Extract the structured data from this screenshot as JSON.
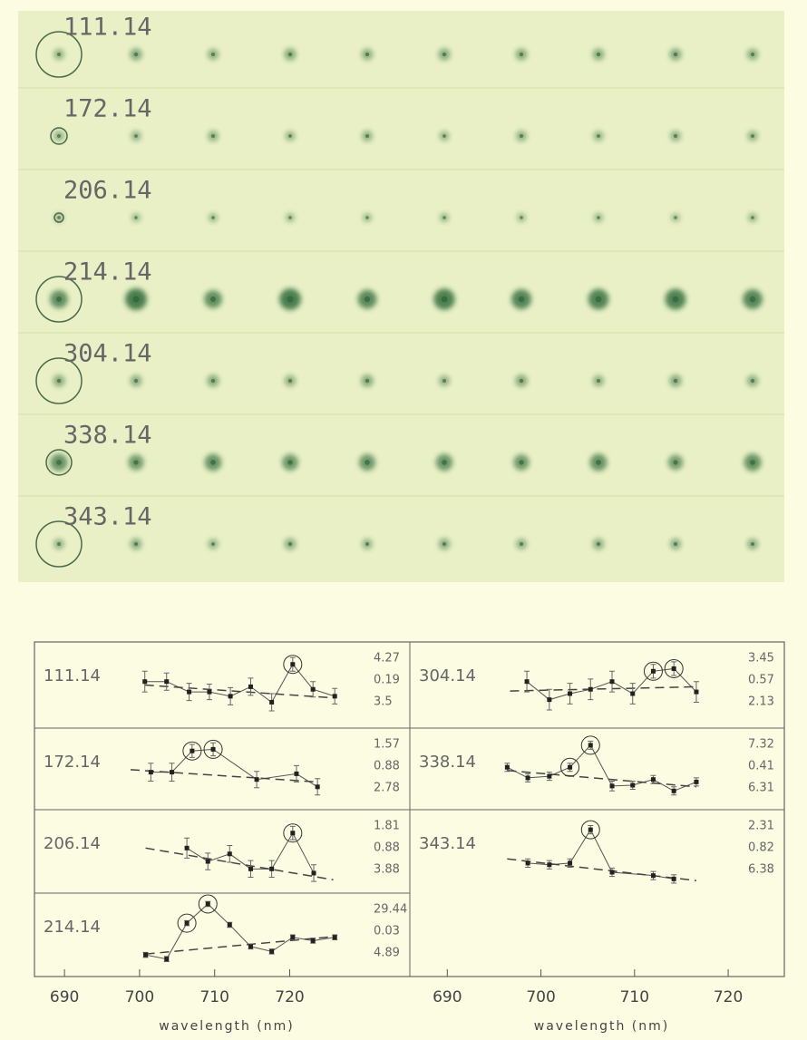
{
  "image_strips": {
    "labels": [
      "111.14",
      "172.14",
      "206.14",
      "214.14",
      "304.14",
      "338.14",
      "343.14"
    ]
  },
  "chart_data": [
    {
      "type": "line",
      "title": "111.14",
      "annotations": [
        "4.27",
        "0.19",
        "3.5"
      ],
      "x": [
        700.7,
        703.6,
        706.6,
        709.3,
        712.1,
        714.8,
        717.6,
        720.4,
        723.1,
        726.0
      ],
      "values": [
        5.4,
        5.4,
        4.2,
        4.2,
        3.7,
        4.8,
        3.0,
        7.4,
        4.5,
        3.7
      ],
      "errors": [
        1.2,
        1.0,
        1.0,
        0.9,
        1.0,
        1.0,
        1.0,
        0.8,
        0.9,
        0.9
      ],
      "highlight": [
        7
      ],
      "trend": {
        "x": [
          700.7,
          726.0
        ],
        "values": [
          5.0,
          3.5
        ]
      },
      "xlim": [
        686,
        736
      ],
      "ylim": [
        0,
        10
      ]
    },
    {
      "type": "line",
      "title": "172.14",
      "annotations": [
        "1.57",
        "0.88",
        "2.78"
      ],
      "x": [
        701.5,
        704.3,
        707.0,
        709.8,
        715.6,
        720.9,
        723.7
      ],
      "values": [
        4.6,
        4.6,
        7.2,
        7.4,
        3.7,
        4.4,
        2.8
      ],
      "errors": [
        1.1,
        1.1,
        0.8,
        0.8,
        1.0,
        1.0,
        1.0
      ],
      "highlight": [
        2,
        3
      ],
      "trend": {
        "x": [
          698.8,
          723.7
        ],
        "values": [
          4.9,
          3.4
        ]
      },
      "xlim": [
        686,
        736
      ],
      "ylim": [
        0,
        10
      ]
    },
    {
      "type": "line",
      "title": "206.14",
      "annotations": [
        "1.81",
        "0.88",
        "3.88"
      ],
      "x": [
        706.3,
        709.1,
        712.0,
        714.8,
        717.6,
        720.4,
        723.2
      ],
      "values": [
        5.4,
        3.8,
        4.7,
        2.9,
        2.9,
        7.2,
        2.4
      ],
      "errors": [
        1.2,
        1.0,
        1.0,
        1.0,
        1.0,
        0.8,
        1.0
      ],
      "highlight": [
        5
      ],
      "trend": {
        "x": [
          700.8,
          725.8
        ],
        "values": [
          5.4,
          1.6
        ]
      },
      "xlim": [
        686,
        736
      ],
      "ylim": [
        0,
        10
      ]
    },
    {
      "type": "line",
      "title": "214.14",
      "annotations": [
        "29.44",
        "0.03",
        "4.89"
      ],
      "x": [
        700.8,
        703.6,
        706.3,
        709.1,
        712.0,
        714.8,
        717.6,
        720.4,
        723.1,
        726.0
      ],
      "values": [
        2.6,
        2.1,
        6.4,
        8.7,
        6.2,
        3.6,
        3.0,
        4.7,
        4.3,
        4.7
      ],
      "errors": [
        0.3,
        0.3,
        0.3,
        0.3,
        0.3,
        0.3,
        0.3,
        0.3,
        0.3,
        0.3
      ],
      "highlight": [
        2,
        3
      ],
      "trend": {
        "x": [
          700.8,
          726.0
        ],
        "values": [
          2.7,
          4.8
        ]
      },
      "xlim": [
        686,
        736
      ],
      "ylim": [
        0,
        10
      ],
      "xticks": [
        690,
        700,
        710,
        720
      ],
      "xlabel": "wavelength (nm)"
    },
    {
      "type": "line",
      "title": "304.14",
      "annotations": [
        "3.45",
        "0.57",
        "2.13"
      ],
      "x": [
        698.5,
        700.9,
        703.1,
        705.3,
        707.6,
        709.8,
        712.0,
        714.2,
        716.6
      ],
      "values": [
        5.4,
        3.3,
        4.0,
        4.5,
        5.4,
        4.0,
        6.6,
        6.9,
        4.2
      ],
      "errors": [
        1.2,
        1.2,
        1.2,
        1.2,
        1.2,
        1.2,
        0.8,
        0.8,
        1.2
      ],
      "highlight": [
        6,
        7
      ],
      "trend": {
        "x": [
          696.7,
          716.6
        ],
        "values": [
          4.3,
          4.8
        ]
      },
      "xlim": [
        686,
        726
      ],
      "ylim": [
        0,
        10
      ]
    },
    {
      "type": "line",
      "title": "338.14",
      "annotations": [
        "7.32",
        "0.41",
        "6.31"
      ],
      "x": [
        696.4,
        698.6,
        700.9,
        703.1,
        705.3,
        707.6,
        709.8,
        712.0,
        714.2,
        716.6
      ],
      "values": [
        5.2,
        3.9,
        4.1,
        5.2,
        7.9,
        2.9,
        3.0,
        3.7,
        2.3,
        3.4
      ],
      "errors": [
        0.5,
        0.5,
        0.5,
        0.5,
        0.5,
        0.6,
        0.5,
        0.5,
        0.5,
        0.5
      ],
      "highlight": [
        3,
        4
      ],
      "trend": {
        "x": [
          696.4,
          716.6
        ],
        "values": [
          4.8,
          2.8
        ]
      },
      "xlim": [
        686,
        726
      ],
      "ylim": [
        0,
        10
      ]
    },
    {
      "type": "line",
      "title": "343.14",
      "annotations": [
        "2.31",
        "0.82",
        "6.38"
      ],
      "x": [
        698.6,
        700.9,
        703.1,
        705.3,
        707.6,
        712.0,
        714.2
      ],
      "values": [
        3.6,
        3.4,
        3.6,
        7.6,
        2.5,
        2.1,
        1.7
      ],
      "errors": [
        0.5,
        0.5,
        0.5,
        0.5,
        0.5,
        0.5,
        0.5
      ],
      "highlight": [
        3
      ],
      "trend": {
        "x": [
          696.4,
          716.6
        ],
        "values": [
          4.1,
          1.5
        ]
      },
      "xlim": [
        686,
        726
      ],
      "ylim": [
        0,
        10
      ],
      "xticks": [
        690,
        700,
        710,
        720
      ],
      "xlabel": "wavelength (nm)"
    }
  ]
}
